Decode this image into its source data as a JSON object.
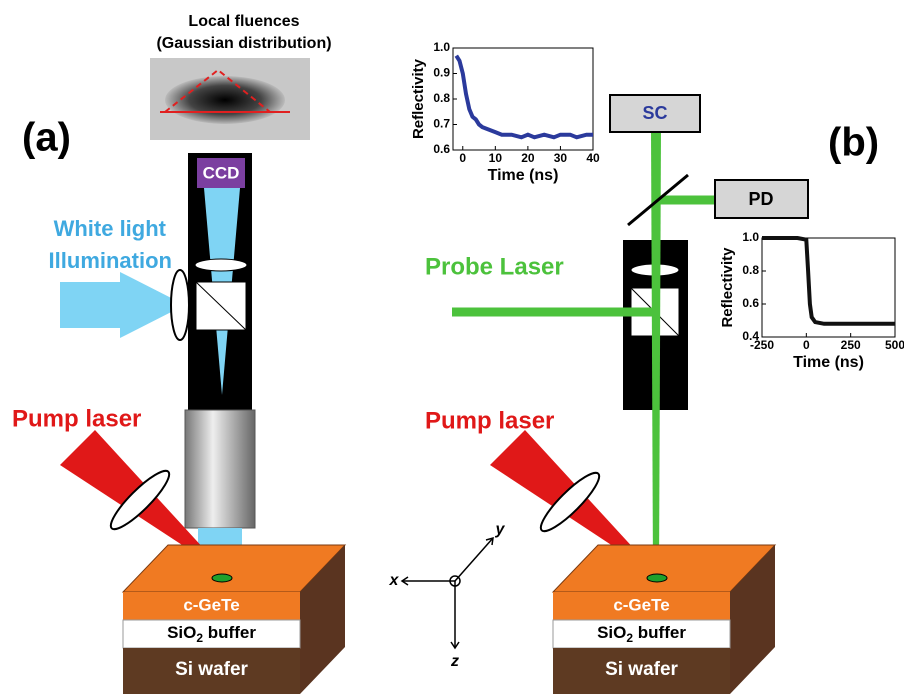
{
  "labels": {
    "local_fluences": "Local fluences",
    "gaussian": "(Gaussian distribution)",
    "panel_a": "(a)",
    "panel_b": "(b)",
    "ccd": "CCD",
    "white_light": "White light",
    "illumination": "Illumination",
    "pump_a": "Pump laser",
    "pump_b": "Pump laser",
    "probe": "Probe Laser",
    "sc": "SC",
    "pd": "PD",
    "axis_x": "x",
    "axis_y": "y",
    "axis_z": "z"
  },
  "samples": [
    {
      "top": "c-GeTe",
      "buffer_main": "SiO",
      "buffer_sub": "2",
      "buffer_rest": " buffer",
      "bottom": "Si wafer"
    },
    {
      "top": "c-GeTe",
      "buffer_main": "SiO",
      "buffer_sub": "2",
      "buffer_rest": " buffer",
      "bottom": "Si wafer"
    }
  ],
  "insets": [
    {
      "ylabel": "Reflectivity",
      "xlabel": "Time (ns)",
      "color": "#2b3a9c",
      "xlim": [
        -3,
        40
      ],
      "xticks": [
        0,
        10,
        20,
        30,
        40
      ],
      "ylim": [
        0.6,
        1.0
      ],
      "yticks": [
        0.6,
        0.7,
        0.8,
        0.9,
        {
          "value": 1,
          "label": "1.0"
        }
      ],
      "x": [
        -2,
        -1,
        0,
        1,
        2,
        3,
        4,
        5,
        6,
        8,
        10,
        12,
        15,
        18,
        20,
        22,
        25,
        28,
        30,
        33,
        35,
        38,
        40
      ],
      "y": [
        0.97,
        0.95,
        0.9,
        0.82,
        0.76,
        0.73,
        0.72,
        0.7,
        0.69,
        0.68,
        0.67,
        0.66,
        0.66,
        0.65,
        0.66,
        0.65,
        0.66,
        0.65,
        0.66,
        0.66,
        0.65,
        0.66,
        0.66
      ]
    },
    {
      "ylabel": "Reflectivity",
      "xlabel": "Time (ns)",
      "color": "#111111",
      "xlim": [
        -250,
        500
      ],
      "xticks": [
        -250,
        0,
        250,
        500
      ],
      "ylim": [
        0.4,
        1.0
      ],
      "yticks": [
        0.4,
        0.6,
        0.8,
        {
          "value": 1,
          "label": "1.0"
        }
      ],
      "x": [
        -250,
        -150,
        -50,
        0,
        10,
        20,
        30,
        50,
        100,
        200,
        300,
        400,
        500
      ],
      "y": [
        1.0,
        1.0,
        1.0,
        0.99,
        0.8,
        0.6,
        0.52,
        0.49,
        0.48,
        0.48,
        0.48,
        0.48,
        0.48
      ]
    }
  ]
}
